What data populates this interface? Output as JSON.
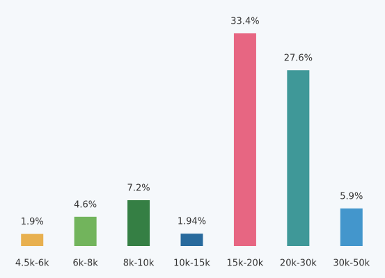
{
  "chart_data": {
    "type": "bar",
    "categories": [
      "4.5k-6k",
      "6k-8k",
      "8k-10k",
      "10k-15k",
      "15k-20k",
      "20k-30k",
      "30k-50k"
    ],
    "values": [
      1.9,
      4.6,
      7.2,
      1.94,
      33.4,
      27.6,
      5.9
    ],
    "value_labels": [
      "1.9%",
      "4.6%",
      "7.2%",
      "1.94%",
      "33.4%",
      "27.6%",
      "5.9%"
    ],
    "colors": [
      "#e8b04f",
      "#72b45c",
      "#357f44",
      "#286a9d",
      "#e76682",
      "#3f9898",
      "#4396cc"
    ]
  }
}
